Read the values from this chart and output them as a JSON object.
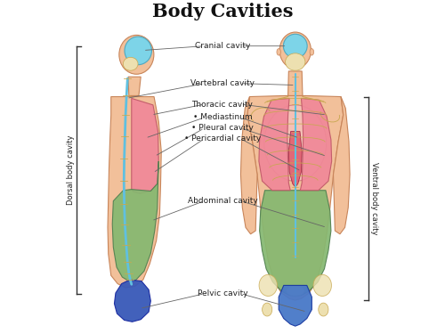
{
  "title": "Body Cavities",
  "title_fontsize": 15,
  "title_fontweight": "bold",
  "bg_color": "#ffffff",
  "skin_color": "#F2C09A",
  "skin_outline": "#C8855A",
  "bone_color": "#EDE0B0",
  "bone_outline": "#C8A850",
  "cranial_color": "#7DD4E8",
  "cranial_outline": "#50A8C0",
  "thoracic_color": "#F08898",
  "thoracic_outline": "#C05868",
  "heart_color": "#E06070",
  "abdominal_color": "#85B870",
  "abdominal_outline": "#508050",
  "pelvic_side_color": "#3858B8",
  "pelvic_front_color": "#4878C8",
  "pelvic_front_outline": "#1838A0",
  "spine_color": "#60C0E0",
  "spine_outline": "#3090B0",
  "label_color": "#222222",
  "line_color": "#666666",
  "bracket_color": "#333333",
  "labels": {
    "cranial": "Cranial cavity",
    "vertebral": "Vertebral cavity",
    "thoracic": "Thoracic cavity",
    "mediastinum": "• Mediastinum",
    "pleural": "• Pleural cavity",
    "pericardial": "• Pericardial cavity",
    "abdominal": "Abdominal cavity",
    "pelvic": "Pelvic cavity",
    "dorsal": "Dorsal body cavity",
    "ventral": "Ventral body cavity"
  },
  "label_fontsize": 6.5,
  "side_label_fontsize": 6.0,
  "lw": 0.8
}
